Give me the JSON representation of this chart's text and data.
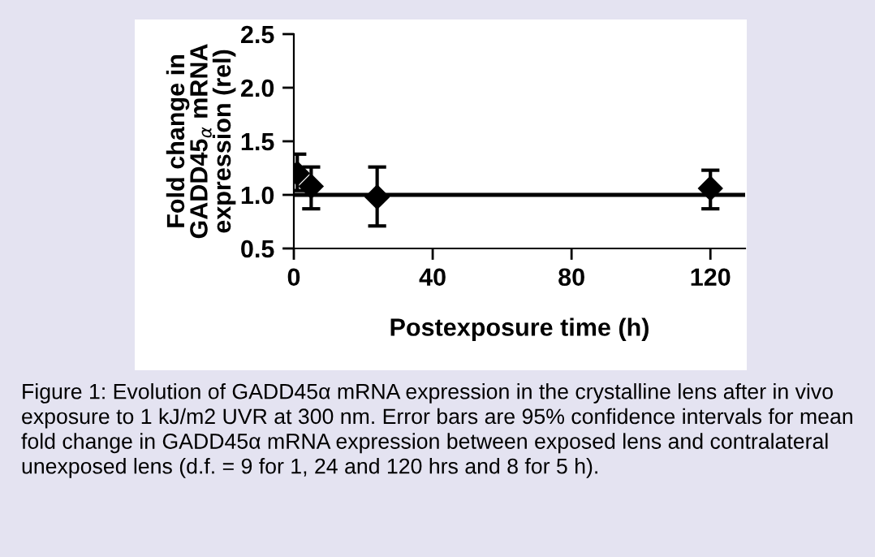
{
  "chart_data": {
    "type": "scatter",
    "xlabel": "Postexposure time (h)",
    "ylabel": "Fold change in\nGADD45$_{α}$ mRNA\nexpression (rel)",
    "x": [
      1,
      5,
      24,
      120
    ],
    "series": [
      {
        "color": "#000000",
        "values": [
          1.2,
          1.08,
          0.98,
          1.06
        ],
        "errors": [
          [
            1.04,
            1.38
          ],
          [
            0.87,
            1.26
          ],
          [
            0.71,
            1.26
          ],
          [
            0.87,
            1.23
          ]
        ]
      }
    ],
    "marker": "diamond",
    "xlim": [
      0,
      130
    ],
    "xticks": [
      0,
      40,
      80,
      120
    ],
    "ylim": [
      0.5,
      2.5
    ],
    "yticks": [
      {
        "value": 0.5,
        "label": "0.5"
      },
      {
        "value": 1.0,
        "label": "1.0"
      },
      {
        "value": 1.5,
        "label": "1.5"
      },
      {
        "value": 2.0,
        "label": "2.0"
      },
      {
        "value": 2.5,
        "label": "2.5"
      }
    ],
    "ref_lines": [
      {
        "axis": "y",
        "value": 1.0,
        "color": "#000000",
        "line_style": "solid"
      }
    ],
    "grid": false,
    "legend": false,
    "annotations": [
      "Figure 1: Evolution of GADD45α mRNA expression in the crystalline lens after in vivo exposure to 1 kJ/m2 UVR at 300 nm. Error bars are 95% confidence intervals for mean fold change in GADD45α mRNA expression between exposed lens and contralateral unexposed lens (d.f. = 9 for 1, 24 and 120 hrs and 8 for 5 h)."
    ]
  }
}
